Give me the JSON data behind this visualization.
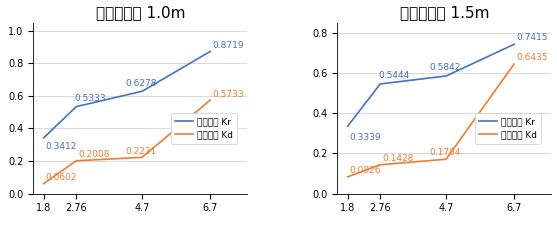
{
  "chart1": {
    "title": "사석경사제 1.0m",
    "x": [
      1.8,
      2.76,
      4.7,
      6.7
    ],
    "kr": [
      0.3412,
      0.5333,
      0.6278,
      0.8719
    ],
    "kd": [
      0.0602,
      0.2008,
      0.2221,
      0.5733
    ],
    "kr_labels": [
      "0.3412",
      "0.5333",
      "0.6278",
      "0.8719"
    ],
    "kd_labels": [
      "0.0602",
      "0.2008",
      "0.2221",
      "0.5733"
    ],
    "ylim": [
      0.0,
      1.05
    ],
    "yticks": [
      0.0,
      0.2,
      0.4,
      0.6,
      0.8,
      1.0
    ]
  },
  "chart2": {
    "title": "사석경사제 1.5m",
    "x": [
      1.8,
      2.76,
      4.7,
      6.7
    ],
    "kr": [
      0.3339,
      0.5444,
      0.5842,
      0.7415
    ],
    "kd": [
      0.0826,
      0.1428,
      0.1704,
      0.6435
    ],
    "kr_labels": [
      "0.3339",
      "0.5444",
      "0.5842",
      "0.7415"
    ],
    "kd_labels": [
      "0.0826",
      "0.1428",
      "0.1704",
      "0.6435"
    ],
    "ylim": [
      0.0,
      0.85
    ],
    "yticks": [
      0.0,
      0.2,
      0.4,
      0.6,
      0.8
    ]
  },
  "xticks": [
    1.8,
    2.76,
    4.7,
    6.7
  ],
  "kr_color": "#4472C4",
  "kd_color": "#ED7D31",
  "legend_kr": "반사계수 Kr",
  "legend_kd": "투과계수 Kd",
  "bg_color": "#FFFFFF",
  "label_fontsize": 6.5,
  "title_fontsize": 11
}
